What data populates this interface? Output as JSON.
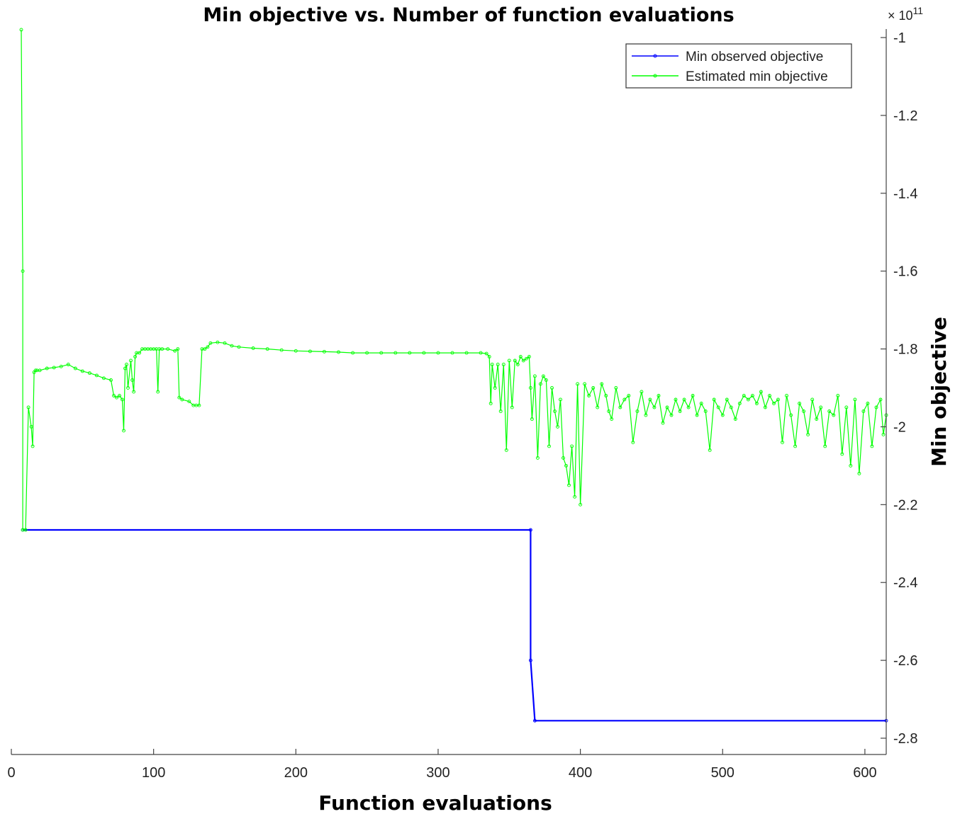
{
  "chart_data": {
    "type": "line",
    "title": "Min objective vs. Number of function evaluations",
    "xlabel": "Function evaluations",
    "ylabel": "Min objective",
    "y_axis_side": "right",
    "y_scale_label_base": "× 10",
    "y_scale_label_exp": "11",
    "xlim": [
      0,
      615
    ],
    "ylim": [
      -2.8,
      -1.0
    ],
    "y_multiplier": 100000000000.0,
    "x_ticks": [
      0,
      100,
      200,
      300,
      400,
      500,
      600
    ],
    "y_ticks": [
      -1,
      -1.2,
      -1.4,
      -1.6,
      -1.8,
      -2,
      -2.2,
      -2.4,
      -2.6,
      -2.8
    ],
    "legend_position": "top-right",
    "grid": false,
    "series": [
      {
        "name": "Min observed objective",
        "color": "#0000ff",
        "marker": "circle",
        "x": [
          8,
          365,
          365,
          368,
          615
        ],
        "y": [
          -2.265,
          -2.265,
          -2.6,
          -2.755,
          -2.755
        ]
      },
      {
        "name": "Estimated min objective",
        "color": "#00ff00",
        "marker": "circle",
        "x": [
          7,
          8,
          8,
          10,
          12,
          14,
          15,
          16,
          17,
          18,
          20,
          25,
          30,
          35,
          40,
          45,
          50,
          55,
          60,
          65,
          70,
          72,
          74,
          76,
          78,
          79,
          80,
          81,
          82,
          84,
          85,
          86,
          87,
          88,
          90,
          92,
          94,
          96,
          98,
          100,
          102,
          103,
          104,
          106,
          110,
          115,
          117,
          118,
          120,
          125,
          128,
          130,
          132,
          134,
          136,
          138,
          140,
          145,
          150,
          155,
          160,
          170,
          180,
          190,
          200,
          210,
          220,
          230,
          240,
          250,
          260,
          270,
          280,
          290,
          300,
          310,
          320,
          330,
          334,
          336,
          337,
          338,
          340,
          342,
          344,
          346,
          348,
          350,
          352,
          354,
          356,
          358,
          360,
          362,
          364,
          365,
          366,
          368,
          370,
          372,
          374,
          376,
          378,
          380,
          382,
          384,
          386,
          388,
          390,
          392,
          394,
          396,
          398,
          400,
          403,
          406,
          409,
          412,
          415,
          418,
          420,
          422,
          425,
          428,
          431,
          434,
          437,
          440,
          443,
          446,
          449,
          452,
          455,
          458,
          461,
          464,
          467,
          470,
          473,
          476,
          479,
          482,
          485,
          488,
          491,
          494,
          497,
          500,
          503,
          506,
          509,
          512,
          515,
          518,
          521,
          524,
          527,
          530,
          533,
          536,
          539,
          542,
          545,
          548,
          551,
          554,
          557,
          560,
          563,
          566,
          569,
          572,
          575,
          578,
          581,
          584,
          587,
          590,
          593,
          596,
          599,
          602,
          605,
          608,
          611,
          613,
          615
        ],
        "y": [
          -0.98,
          -1.6,
          -2.265,
          -2.265,
          -1.95,
          -2.0,
          -2.05,
          -1.86,
          -1.855,
          -1.855,
          -1.855,
          -1.85,
          -1.848,
          -1.845,
          -1.84,
          -1.85,
          -1.857,
          -1.862,
          -1.868,
          -1.875,
          -1.88,
          -1.92,
          -1.925,
          -1.92,
          -1.93,
          -2.01,
          -1.85,
          -1.84,
          -1.9,
          -1.83,
          -1.88,
          -1.91,
          -1.82,
          -1.81,
          -1.81,
          -1.8,
          -1.8,
          -1.8,
          -1.8,
          -1.8,
          -1.8,
          -1.91,
          -1.8,
          -1.8,
          -1.8,
          -1.805,
          -1.8,
          -1.925,
          -1.93,
          -1.935,
          -1.945,
          -1.945,
          -1.945,
          -1.8,
          -1.8,
          -1.795,
          -1.785,
          -1.783,
          -1.785,
          -1.792,
          -1.795,
          -1.798,
          -1.8,
          -1.803,
          -1.805,
          -1.806,
          -1.807,
          -1.808,
          -1.81,
          -1.81,
          -1.81,
          -1.81,
          -1.81,
          -1.81,
          -1.81,
          -1.81,
          -1.81,
          -1.81,
          -1.812,
          -1.82,
          -1.94,
          -1.84,
          -1.9,
          -1.84,
          -1.96,
          -1.84,
          -2.06,
          -1.83,
          -1.95,
          -1.83,
          -1.84,
          -1.82,
          -1.83,
          -1.825,
          -1.82,
          -1.9,
          -1.98,
          -1.87,
          -2.08,
          -1.89,
          -1.87,
          -1.88,
          -2.05,
          -1.9,
          -1.96,
          -2.0,
          -1.93,
          -2.08,
          -2.1,
          -2.15,
          -2.05,
          -2.18,
          -1.89,
          -2.2,
          -1.89,
          -1.92,
          -1.9,
          -1.95,
          -1.89,
          -1.92,
          -1.96,
          -1.98,
          -1.9,
          -1.95,
          -1.93,
          -1.92,
          -2.04,
          -1.96,
          -1.91,
          -1.97,
          -1.93,
          -1.95,
          -1.92,
          -1.99,
          -1.95,
          -1.97,
          -1.93,
          -1.96,
          -1.93,
          -1.95,
          -1.92,
          -1.97,
          -1.94,
          -1.96,
          -2.06,
          -1.93,
          -1.95,
          -1.97,
          -1.93,
          -1.95,
          -1.98,
          -1.94,
          -1.92,
          -1.93,
          -1.92,
          -1.94,
          -1.91,
          -1.95,
          -1.92,
          -1.94,
          -1.93,
          -2.04,
          -1.92,
          -1.97,
          -2.05,
          -1.94,
          -1.96,
          -2.02,
          -1.93,
          -1.98,
          -1.95,
          -2.05,
          -1.96,
          -1.97,
          -1.92,
          -2.07,
          -1.95,
          -2.1,
          -1.93,
          -2.12,
          -1.96,
          -1.94,
          -2.05,
          -1.95,
          -1.93,
          -2.02,
          -1.97
        ]
      }
    ]
  }
}
